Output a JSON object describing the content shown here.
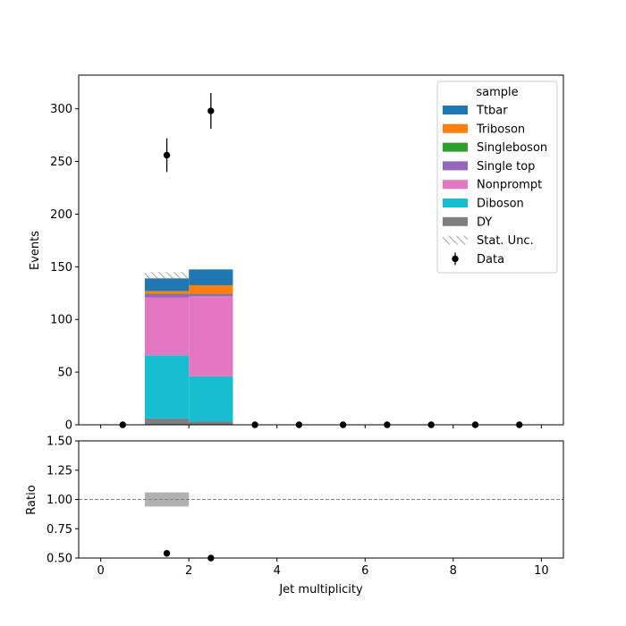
{
  "chart_data": {
    "type": "bar",
    "stacked": true,
    "bin_edges": [
      0,
      1,
      2,
      3,
      4,
      5,
      6,
      7,
      8,
      9,
      10
    ],
    "xlabel": "Jet multiplicity",
    "xlim": [
      -0.5,
      10.5
    ],
    "x_ticks": [
      "0",
      "2",
      "4",
      "6",
      "8",
      "10"
    ],
    "top_panel": {
      "ylabel": "Events",
      "ylim": [
        0,
        332
      ],
      "y_ticks": [
        "0",
        "50",
        "100",
        "150",
        "200",
        "250",
        "300"
      ]
    },
    "ratio_panel": {
      "ylabel": "Ratio",
      "ylim": [
        0.5,
        1.5
      ],
      "y_ticks": [
        "0.50",
        "0.75",
        "1.00",
        "1.25",
        "1.50"
      ],
      "reference_line": 1.0,
      "uncertainty_band": [
        {
          "bin": [
            1,
            2
          ],
          "low": 0.94,
          "high": 1.06
        }
      ],
      "points": [
        {
          "x": 1.5,
          "y": 0.54
        },
        {
          "x": 2.5,
          "y": 0.5
        }
      ]
    },
    "legend": {
      "title": "sample",
      "position": "top-right"
    },
    "series": [
      {
        "name": "DY",
        "color": "#7f7f7f",
        "values": [
          0,
          6,
          3,
          0,
          0,
          0,
          0,
          0,
          0,
          0
        ]
      },
      {
        "name": "Diboson",
        "color": "#17becf",
        "values": [
          0,
          60,
          43,
          0,
          0,
          0,
          0,
          0,
          0,
          0
        ]
      },
      {
        "name": "Nonprompt",
        "color": "#e377c2",
        "values": [
          0,
          55,
          76,
          0,
          0,
          0,
          0,
          0,
          0,
          0
        ]
      },
      {
        "name": "Single top",
        "color": "#9467bd",
        "values": [
          0,
          3,
          2,
          0,
          0,
          0,
          0,
          0,
          0,
          0
        ]
      },
      {
        "name": "Singleboson",
        "color": "#2ca02c",
        "values": [
          0,
          0.5,
          0.5,
          0,
          0,
          0,
          0,
          0,
          0,
          0
        ]
      },
      {
        "name": "Triboson",
        "color": "#ff7f0e",
        "values": [
          0,
          2.5,
          8,
          0,
          0,
          0,
          0,
          0,
          0,
          0
        ]
      },
      {
        "name": "Ttbar",
        "color": "#1f77b4",
        "values": [
          0,
          12,
          15,
          0,
          0,
          0,
          0,
          0,
          0,
          0
        ]
      }
    ],
    "stat_unc": {
      "name": "Stat. Unc.",
      "bins": [
        {
          "bin": [
            1,
            2
          ],
          "low": 139,
          "high": 145
        }
      ]
    },
    "data": {
      "name": "Data",
      "x": [
        0.5,
        1.5,
        2.5,
        3.5,
        4.5,
        5.5,
        6.5,
        7.5,
        8.5,
        9.5
      ],
      "y": [
        0,
        256,
        298,
        0,
        0,
        0,
        0,
        0,
        0,
        0
      ],
      "yerr": [
        0,
        16,
        17,
        0,
        0,
        0,
        0,
        0,
        0,
        0
      ]
    },
    "legend_order": [
      "Ttbar",
      "Triboson",
      "Singleboson",
      "Single top",
      "Nonprompt",
      "Diboson",
      "DY",
      "Stat. Unc.",
      "Data"
    ]
  }
}
